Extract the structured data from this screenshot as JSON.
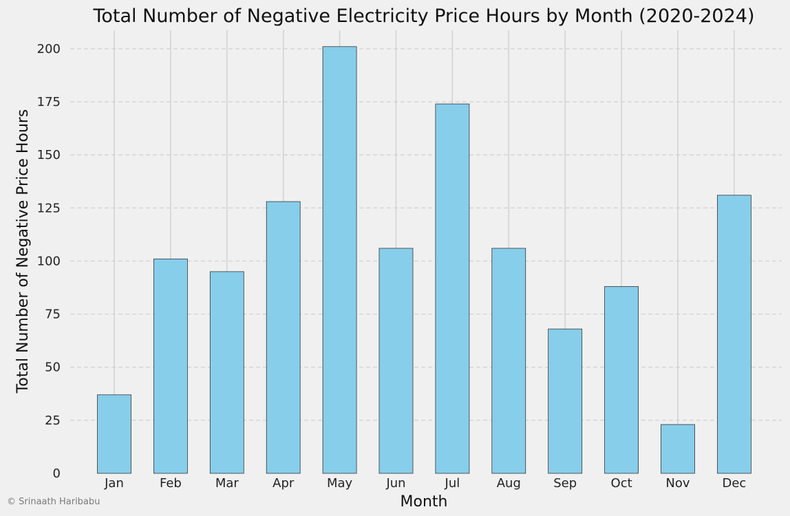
{
  "chart_data": {
    "type": "bar",
    "title": "Total Number of Negative Electricity Price Hours by Month (2020-2024)",
    "xlabel": "Month",
    "ylabel": "Total Number of Negative Price Hours",
    "categories": [
      "Jan",
      "Feb",
      "Mar",
      "Apr",
      "May",
      "Jun",
      "Jul",
      "Aug",
      "Sep",
      "Oct",
      "Nov",
      "Dec"
    ],
    "values": [
      37,
      101,
      95,
      128,
      201,
      106,
      174,
      106,
      68,
      88,
      23,
      131
    ],
    "ylim": [
      0,
      210
    ],
    "yticks": [
      0,
      25,
      50,
      75,
      100,
      125,
      150,
      175,
      200
    ],
    "grid": {
      "y": "dashed",
      "x": "solid"
    },
    "colors": {
      "bar_fill": "#87ceeb",
      "bar_edge": "#333333",
      "background": "#f0f0f0",
      "grid": "#cfcfcf"
    }
  },
  "credit": "© Srinaath Haribabu"
}
